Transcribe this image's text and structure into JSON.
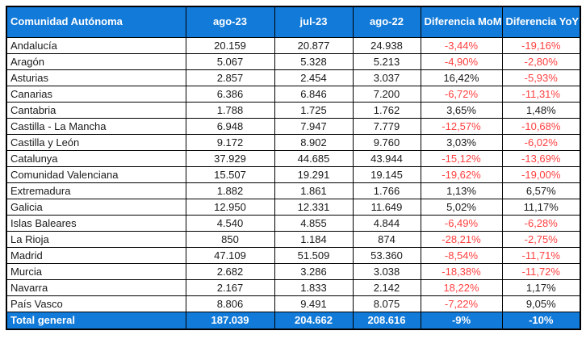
{
  "colors": {
    "header_bg": "#127ad8",
    "total_bg": "#127ad8",
    "header_text": "#ffffff",
    "body_text": "#1a1a1a",
    "negative_text": "#ff4040",
    "border": "#000000"
  },
  "table": {
    "columns": [
      {
        "key": "name",
        "label": "Comunidad Autónoma"
      },
      {
        "key": "ago23",
        "label": "ago-23"
      },
      {
        "key": "jul23",
        "label": "jul-23"
      },
      {
        "key": "ago22",
        "label": "ago-22"
      },
      {
        "key": "mom",
        "label": "Diferencia MoM"
      },
      {
        "key": "yoy",
        "label": "Diferencia YoY"
      }
    ],
    "rows": [
      {
        "name": "Andalucía",
        "ago23": "20.159",
        "jul23": "20.877",
        "ago22": "24.938",
        "mom": "-3,44%",
        "mom_red": true,
        "yoy": "-19,16%",
        "yoy_red": true
      },
      {
        "name": "Aragón",
        "ago23": "5.067",
        "jul23": "5.328",
        "ago22": "5.213",
        "mom": "-4,90%",
        "mom_red": true,
        "yoy": "-2,80%",
        "yoy_red": true
      },
      {
        "name": "Asturias",
        "ago23": "2.857",
        "jul23": "2.454",
        "ago22": "3.037",
        "mom": "16,42%",
        "mom_red": false,
        "yoy": "-5,93%",
        "yoy_red": true
      },
      {
        "name": "Canarias",
        "ago23": "6.386",
        "jul23": "6.846",
        "ago22": "7.200",
        "mom": "-6,72%",
        "mom_red": true,
        "yoy": "-11,31%",
        "yoy_red": true
      },
      {
        "name": "Cantabria",
        "ago23": "1.788",
        "jul23": "1.725",
        "ago22": "1.762",
        "mom": "3,65%",
        "mom_red": false,
        "yoy": "1,48%",
        "yoy_red": false
      },
      {
        "name": "Castilla - La Mancha",
        "ago23": "6.948",
        "jul23": "7.947",
        "ago22": "7.779",
        "mom": "-12,57%",
        "mom_red": true,
        "yoy": "-10,68%",
        "yoy_red": true
      },
      {
        "name": "Castilla y León",
        "ago23": "9.172",
        "jul23": "8.902",
        "ago22": "9.760",
        "mom": "3,03%",
        "mom_red": false,
        "yoy": "-6,02%",
        "yoy_red": true
      },
      {
        "name": "Catalunya",
        "ago23": "37.929",
        "jul23": "44.685",
        "ago22": "43.944",
        "mom": "-15,12%",
        "mom_red": true,
        "yoy": "-13,69%",
        "yoy_red": true
      },
      {
        "name": "Comunidad Valenciana",
        "ago23": "15.507",
        "jul23": "19.291",
        "ago22": "19.145",
        "mom": "-19,62%",
        "mom_red": true,
        "yoy": "-19,00%",
        "yoy_red": true
      },
      {
        "name": "Extremadura",
        "ago23": "1.882",
        "jul23": "1.861",
        "ago22": "1.766",
        "mom": "1,13%",
        "mom_red": false,
        "yoy": "6,57%",
        "yoy_red": false
      },
      {
        "name": "Galicia",
        "ago23": "12.950",
        "jul23": "12.331",
        "ago22": "11.649",
        "mom": "5,02%",
        "mom_red": false,
        "yoy": "11,17%",
        "yoy_red": false
      },
      {
        "name": "Islas Baleares",
        "ago23": "4.540",
        "jul23": "4.855",
        "ago22": "4.844",
        "mom": "-6,49%",
        "mom_red": true,
        "yoy": "-6,28%",
        "yoy_red": true
      },
      {
        "name": "La Rioja",
        "ago23": "850",
        "jul23": "1.184",
        "ago22": "874",
        "mom": "-28,21%",
        "mom_red": true,
        "yoy": "-2,75%",
        "yoy_red": true
      },
      {
        "name": "Madrid",
        "ago23": "47.109",
        "jul23": "51.509",
        "ago22": "53.360",
        "mom": "-8,54%",
        "mom_red": true,
        "yoy": "-11,71%",
        "yoy_red": true
      },
      {
        "name": "Murcia",
        "ago23": "2.682",
        "jul23": "3.286",
        "ago22": "3.038",
        "mom": "-18,38%",
        "mom_red": true,
        "yoy": "-11,72%",
        "yoy_red": true
      },
      {
        "name": "Navarra",
        "ago23": "2.167",
        "jul23": "1.833",
        "ago22": "2.142",
        "mom": "18,22%",
        "mom_red": true,
        "yoy": "1,17%",
        "yoy_red": false
      },
      {
        "name": "País Vasco",
        "ago23": "8.806",
        "jul23": "9.491",
        "ago22": "8.075",
        "mom": "-7,22%",
        "mom_red": true,
        "yoy": "9,05%",
        "yoy_red": false
      }
    ],
    "total": {
      "name": "Total general",
      "ago23": "187.039",
      "jul23": "204.662",
      "ago22": "208.616",
      "mom": "-9%",
      "yoy": "-10%"
    }
  }
}
